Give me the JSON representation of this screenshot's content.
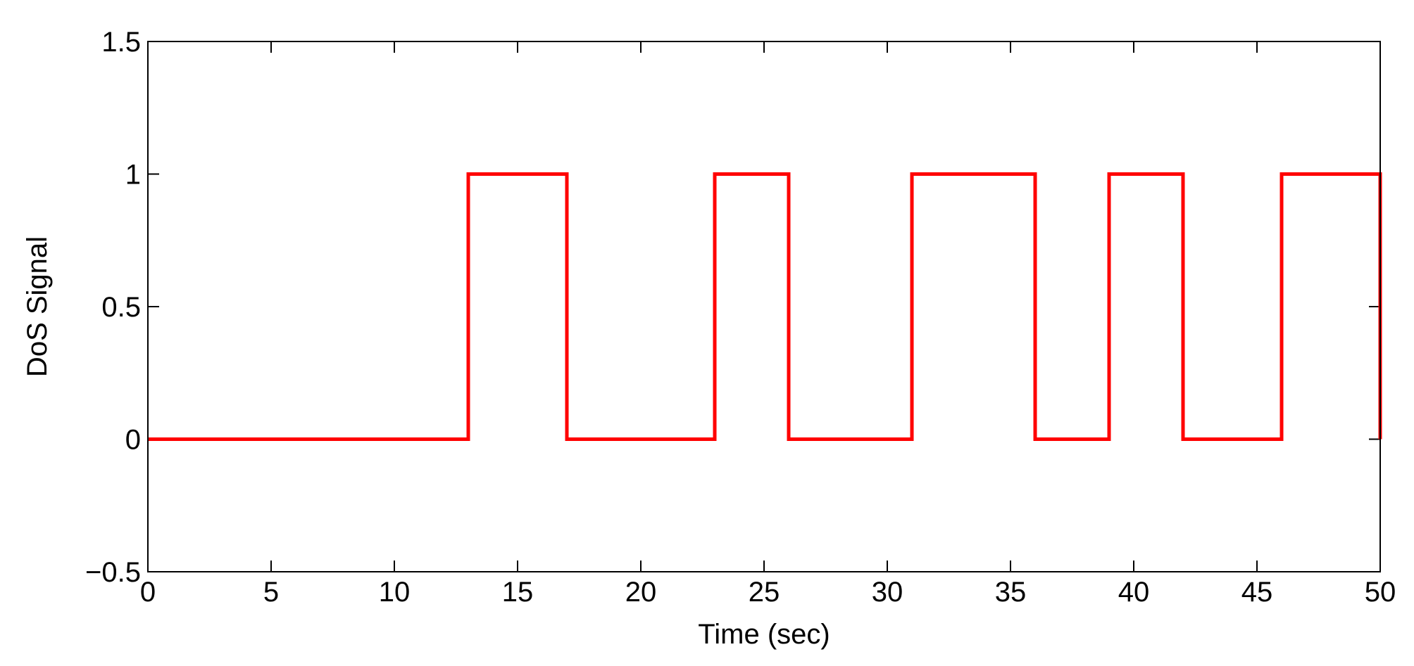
{
  "chart_data": {
    "type": "line",
    "title": "",
    "xlabel": "Time (sec)",
    "ylabel": "DoS Signal",
    "xlim": [
      0,
      50
    ],
    "ylim": [
      -0.5,
      1.5
    ],
    "x_ticks": [
      0,
      5,
      10,
      15,
      20,
      25,
      30,
      35,
      40,
      45,
      50
    ],
    "y_ticks": [
      -0.5,
      0,
      0.5,
      1,
      1.5
    ],
    "x_tick_labels": [
      "0",
      "5",
      "10",
      "15",
      "20",
      "25",
      "30",
      "35",
      "40",
      "45",
      "50"
    ],
    "y_tick_labels": [
      "−0.5",
      "0",
      "0.5",
      "1",
      "1.5"
    ],
    "grid": false,
    "legend": null,
    "series": [
      {
        "style": "step",
        "color": "#ff0000",
        "x": [
          0,
          13,
          13,
          17,
          17,
          23,
          23,
          26,
          26,
          31,
          31,
          36,
          36,
          39,
          39,
          42,
          42,
          46,
          46,
          50,
          50
        ],
        "y": [
          0,
          0,
          1,
          1,
          0,
          0,
          1,
          1,
          0,
          0,
          1,
          1,
          0,
          0,
          1,
          1,
          0,
          0,
          1,
          1,
          0
        ]
      }
    ]
  }
}
